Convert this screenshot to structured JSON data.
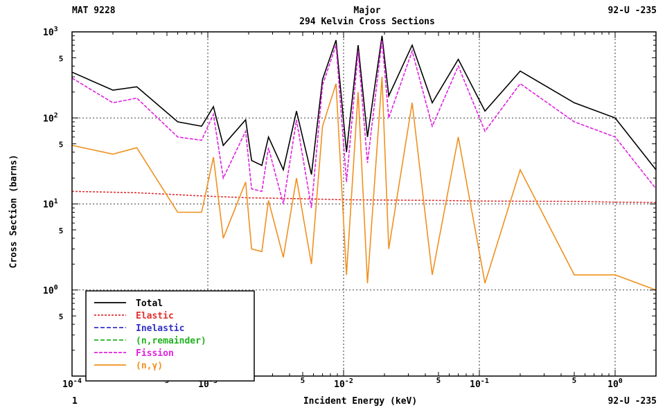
{
  "header": {
    "left": "MAT 9228",
    "center_line1": "Major",
    "center_line2": "294 Kelvin Cross Sections",
    "right": "92-U -235"
  },
  "footer": {
    "left": "1",
    "xlabel": "Incident Energy (keV)",
    "right": "92-U -235"
  },
  "chart_data": {
    "type": "line",
    "title": "294 Kelvin Cross Sections",
    "xlabel": "Incident Energy (keV)",
    "ylabel": "Cross Section (barns)",
    "xscale": "log",
    "yscale": "log",
    "xlim": [
      0.0001,
      2.0
    ],
    "ylim": [
      0.1,
      1000
    ],
    "grid": true,
    "legend_position": "bottom-left",
    "x_ticks": [
      {
        "label": "10",
        "exp": "-4"
      },
      {
        "label": "5",
        "exp": ""
      },
      {
        "label": "10",
        "exp": "-3"
      },
      {
        "label": "5",
        "exp": ""
      },
      {
        "label": "10",
        "exp": "-2"
      },
      {
        "label": "5",
        "exp": ""
      },
      {
        "label": "10",
        "exp": "-1"
      },
      {
        "label": "5",
        "exp": ""
      },
      {
        "label": "10",
        "exp": "0"
      }
    ],
    "y_ticks": [
      {
        "label": "10",
        "exp": "3"
      },
      {
        "label": "5",
        "exp": ""
      },
      {
        "label": "10",
        "exp": "2"
      },
      {
        "label": "5",
        "exp": ""
      },
      {
        "label": "10",
        "exp": "1"
      },
      {
        "label": "5",
        "exp": ""
      },
      {
        "label": "10",
        "exp": "0"
      },
      {
        "label": "5",
        "exp": ""
      }
    ],
    "series": [
      {
        "name": "Total",
        "color": "#000000",
        "dash": "solid",
        "x": [
          0.0001,
          0.0002,
          0.0003,
          0.0006,
          0.0009,
          0.0011,
          0.0013,
          0.0019,
          0.0021,
          0.0025,
          0.0028,
          0.0036,
          0.0045,
          0.0058,
          0.007,
          0.0088,
          0.0105,
          0.0128,
          0.015,
          0.0192,
          0.0215,
          0.032,
          0.045,
          0.07,
          0.11,
          0.2,
          0.5,
          1.0,
          2.0
        ],
        "y": [
          340,
          210,
          230,
          90,
          80,
          135,
          48,
          95,
          32,
          28,
          60,
          25,
          120,
          22,
          280,
          800,
          40,
          700,
          60,
          900,
          180,
          700,
          150,
          480,
          120,
          350,
          150,
          100,
          25
        ]
      },
      {
        "name": "Elastic",
        "color": "#e03030",
        "dash": "3,2",
        "x": [
          0.0001,
          0.0003,
          0.0006,
          0.001,
          0.002,
          0.005,
          0.01,
          0.05,
          0.1,
          0.5,
          1.0,
          2.0
        ],
        "y": [
          14,
          13.5,
          12.8,
          12.3,
          11.8,
          11.5,
          11.2,
          11.0,
          10.8,
          10.7,
          10.5,
          10.4
        ]
      },
      {
        "name": "Inelastic",
        "color": "#3030c8",
        "dash": "6,3",
        "x": [],
        "y": []
      },
      {
        "name": "(n,remainder)",
        "color": "#20b020",
        "dash": "6,3",
        "x": [],
        "y": []
      },
      {
        "name": "Fission",
        "color": "#e020e0",
        "dash": "5,2",
        "x": [
          0.0001,
          0.0002,
          0.0003,
          0.0006,
          0.0009,
          0.0011,
          0.0013,
          0.0019,
          0.0021,
          0.0025,
          0.0028,
          0.0036,
          0.0045,
          0.0058,
          0.007,
          0.0088,
          0.0105,
          0.0128,
          0.015,
          0.0192,
          0.0215,
          0.032,
          0.045,
          0.07,
          0.11,
          0.2,
          0.5,
          1.0,
          2.0
        ],
        "y": [
          290,
          150,
          170,
          60,
          55,
          110,
          20,
          70,
          15,
          14,
          45,
          10,
          95,
          9,
          240,
          700,
          18,
          600,
          30,
          800,
          100,
          600,
          80,
          400,
          70,
          250,
          90,
          60,
          15
        ]
      },
      {
        "name": "(n,γ)",
        "color": "#f0901e",
        "dash": "solid",
        "x": [
          0.0001,
          0.0002,
          0.0003,
          0.0006,
          0.0009,
          0.0011,
          0.0013,
          0.0019,
          0.0021,
          0.0025,
          0.0028,
          0.0036,
          0.0045,
          0.0058,
          0.007,
          0.0088,
          0.0105,
          0.0128,
          0.015,
          0.0192,
          0.0215,
          0.032,
          0.045,
          0.07,
          0.11,
          0.2,
          0.5,
          1.0,
          2.0
        ],
        "y": [
          48,
          38,
          45,
          8,
          8,
          35,
          4,
          18,
          3,
          2.8,
          11,
          2.4,
          20,
          2,
          80,
          250,
          1.5,
          200,
          1.2,
          300,
          3,
          150,
          1.5,
          60,
          1.2,
          25,
          1.5,
          1.5,
          1
        ]
      }
    ]
  }
}
